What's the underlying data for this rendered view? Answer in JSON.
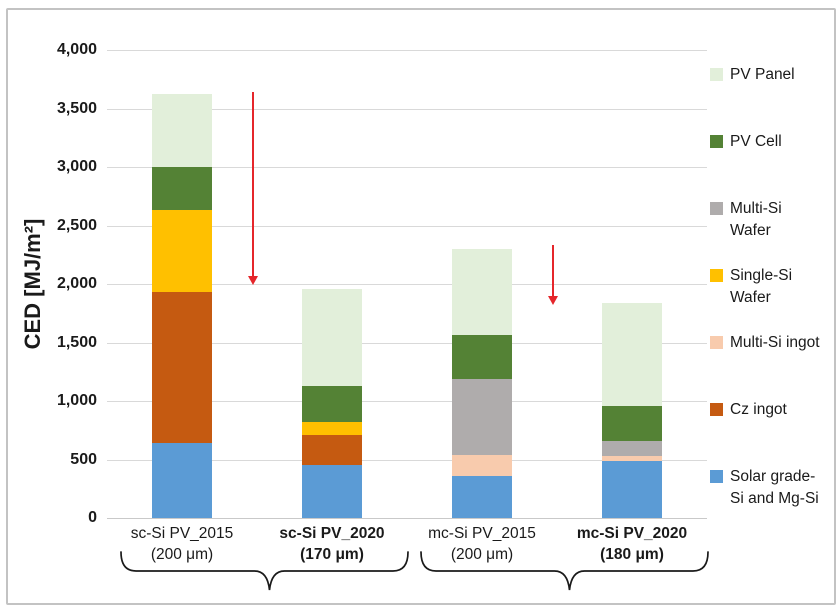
{
  "chart_data": {
    "type": "bar",
    "stacked": true,
    "title": "",
    "ylabel": "CED [MJ/m²]",
    "ylim": [
      0,
      4000
    ],
    "grid": true,
    "legend_position": "right",
    "yticks": [
      {
        "value": 0,
        "label": "0"
      },
      {
        "value": 500,
        "label": "500"
      },
      {
        "value": 1000,
        "label": "1,000"
      },
      {
        "value": 1500,
        "label": "1,500"
      },
      {
        "value": 2000,
        "label": "2,000"
      },
      {
        "value": 2500,
        "label": "2,500"
      },
      {
        "value": 3000,
        "label": "3,000"
      },
      {
        "value": 3500,
        "label": "3,500"
      },
      {
        "value": 4000,
        "label": "4,000"
      }
    ],
    "series_colors": {
      "panel": "#e2efda",
      "cell": "#548235",
      "multi_wafer": "#afacac",
      "single_wafer": "#ffc000",
      "multi_ingot": "#f8cbad",
      "cz_ingot": "#c55a11",
      "solar": "#5b9bd5"
    },
    "legend": [
      {
        "key": "panel",
        "label": "PV Panel"
      },
      {
        "key": "cell",
        "label": "PV Cell"
      },
      {
        "key": "multi_wafer",
        "label": "Multi-Si\nWafer"
      },
      {
        "key": "single_wafer",
        "label": "Single-Si\nWafer"
      },
      {
        "key": "multi_ingot",
        "label": "Multi-Si ingot"
      },
      {
        "key": "cz_ingot",
        "label": "Cz ingot"
      },
      {
        "key": "solar",
        "label": "Solar grade-\nSi and Mg-Si"
      }
    ],
    "categories": [
      {
        "label": "sc-Si PV_2015",
        "sublabel": "(200 μm)",
        "bold": false,
        "total": 3620,
        "segments": [
          {
            "key": "solar",
            "value": 640
          },
          {
            "key": "cz_ingot",
            "value": 1290
          },
          {
            "key": "single_wafer",
            "value": 700
          },
          {
            "key": "cell",
            "value": 370
          },
          {
            "key": "panel",
            "value": 620
          }
        ]
      },
      {
        "label": "sc-Si PV_2020",
        "sublabel": "(170 μm)",
        "bold": true,
        "total": 1960,
        "segments": [
          {
            "key": "solar",
            "value": 450
          },
          {
            "key": "cz_ingot",
            "value": 260
          },
          {
            "key": "single_wafer",
            "value": 110
          },
          {
            "key": "cell",
            "value": 310
          },
          {
            "key": "panel",
            "value": 830
          }
        ]
      },
      {
        "label": "mc-Si PV_2015",
        "sublabel": "(200 μm)",
        "bold": false,
        "total": 2300,
        "segments": [
          {
            "key": "solar",
            "value": 360
          },
          {
            "key": "multi_ingot",
            "value": 180
          },
          {
            "key": "multi_wafer",
            "value": 650
          },
          {
            "key": "cell",
            "value": 370
          },
          {
            "key": "panel",
            "value": 740
          }
        ]
      },
      {
        "label": "mc-Si PV_2020",
        "sublabel": "(180 μm)",
        "bold": true,
        "total": 1840,
        "segments": [
          {
            "key": "solar",
            "value": 490
          },
          {
            "key": "multi_ingot",
            "value": 40
          },
          {
            "key": "multi_wafer",
            "value": 130
          },
          {
            "key": "cell",
            "value": 300
          },
          {
            "key": "panel",
            "value": 880
          }
        ]
      }
    ],
    "annotations": {
      "arrows": [
        {
          "between": [
            0,
            1
          ],
          "from_value": 3640,
          "to_value": 1990,
          "color": "#e5262b"
        },
        {
          "between": [
            2,
            3
          ],
          "from_value": 2330,
          "to_value": 1820,
          "color": "#e5262b"
        }
      ],
      "group_braces": [
        {
          "bars": [
            0,
            1
          ]
        },
        {
          "bars": [
            2,
            3
          ]
        }
      ]
    }
  }
}
